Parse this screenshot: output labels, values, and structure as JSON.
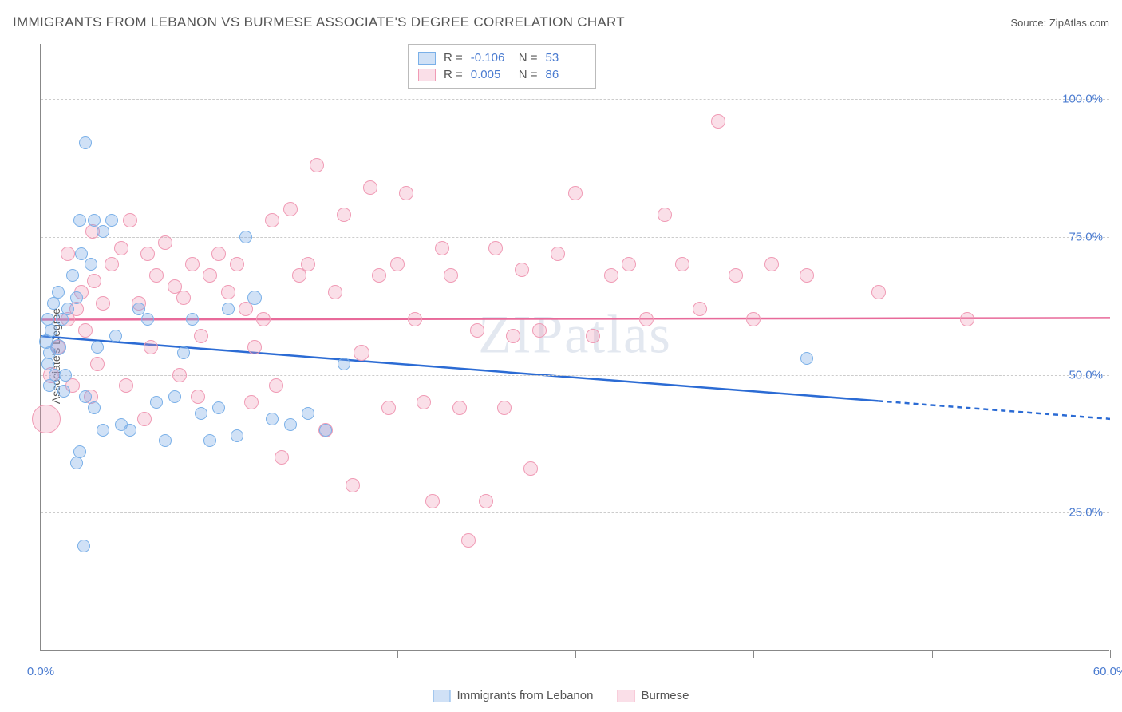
{
  "title": "IMMIGRANTS FROM LEBANON VS BURMESE ASSOCIATE'S DEGREE CORRELATION CHART",
  "source": "Source: ZipAtlas.com",
  "watermark": "ZIPatlas",
  "ylabel": "Associate's Degree",
  "chart": {
    "type": "scatter",
    "background_color": "#ffffff",
    "grid_color": "#cccccc",
    "axis_color": "#888888",
    "xlim": [
      0,
      60
    ],
    "ylim": [
      0,
      110
    ],
    "xticks": [
      0,
      10,
      20,
      30,
      40,
      50,
      60
    ],
    "xtick_labels": {
      "0": "0.0%",
      "60": "60.0%"
    },
    "yticks": [
      25,
      50,
      75,
      100
    ],
    "ytick_labels": {
      "25": "25.0%",
      "50": "50.0%",
      "75": "75.0%",
      "100": "100.0%"
    },
    "label_fontsize": 15,
    "label_color": "#4a7bd0",
    "series_a": {
      "name": "Immigrants from Lebanon",
      "fill": "rgba(120,170,230,0.35)",
      "stroke": "#7ab0e8",
      "trend_color": "#2b6bd4",
      "trend_width": 2.5,
      "R": "-0.106",
      "N": "53",
      "trend": {
        "x1": 0,
        "y1": 57,
        "x2": 60,
        "y2": 42,
        "solid_until_x": 47
      },
      "points": [
        {
          "x": 0.3,
          "y": 56,
          "r": 9
        },
        {
          "x": 0.5,
          "y": 54,
          "r": 8
        },
        {
          "x": 0.4,
          "y": 52,
          "r": 8
        },
        {
          "x": 0.6,
          "y": 58,
          "r": 8
        },
        {
          "x": 0.8,
          "y": 50,
          "r": 8
        },
        {
          "x": 0.5,
          "y": 48,
          "r": 8
        },
        {
          "x": 1.0,
          "y": 55,
          "r": 10
        },
        {
          "x": 1.2,
          "y": 60,
          "r": 8
        },
        {
          "x": 1.5,
          "y": 62,
          "r": 8
        },
        {
          "x": 1.3,
          "y": 47,
          "r": 8
        },
        {
          "x": 2.0,
          "y": 64,
          "r": 8
        },
        {
          "x": 2.2,
          "y": 78,
          "r": 8
        },
        {
          "x": 2.5,
          "y": 92,
          "r": 8
        },
        {
          "x": 2.3,
          "y": 72,
          "r": 8
        },
        {
          "x": 3.0,
          "y": 78,
          "r": 8
        },
        {
          "x": 2.8,
          "y": 70,
          "r": 8
        },
        {
          "x": 3.5,
          "y": 76,
          "r": 8
        },
        {
          "x": 4.0,
          "y": 78,
          "r": 8
        },
        {
          "x": 2.0,
          "y": 34,
          "r": 8
        },
        {
          "x": 2.2,
          "y": 36,
          "r": 8
        },
        {
          "x": 2.5,
          "y": 46,
          "r": 8
        },
        {
          "x": 3.0,
          "y": 44,
          "r": 8
        },
        {
          "x": 3.5,
          "y": 40,
          "r": 8
        },
        {
          "x": 3.2,
          "y": 55,
          "r": 8
        },
        {
          "x": 2.4,
          "y": 19,
          "r": 8
        },
        {
          "x": 4.5,
          "y": 41,
          "r": 8
        },
        {
          "x": 5.0,
          "y": 40,
          "r": 8
        },
        {
          "x": 5.5,
          "y": 62,
          "r": 8
        },
        {
          "x": 6.0,
          "y": 60,
          "r": 8
        },
        {
          "x": 6.5,
          "y": 45,
          "r": 8
        },
        {
          "x": 7.0,
          "y": 38,
          "r": 8
        },
        {
          "x": 7.5,
          "y": 46,
          "r": 8
        },
        {
          "x": 8.0,
          "y": 54,
          "r": 8
        },
        {
          "x": 8.5,
          "y": 60,
          "r": 8
        },
        {
          "x": 9.0,
          "y": 43,
          "r": 8
        },
        {
          "x": 9.5,
          "y": 38,
          "r": 8
        },
        {
          "x": 10.0,
          "y": 44,
          "r": 8
        },
        {
          "x": 10.5,
          "y": 62,
          "r": 8
        },
        {
          "x": 11.0,
          "y": 39,
          "r": 8
        },
        {
          "x": 11.5,
          "y": 75,
          "r": 8
        },
        {
          "x": 12.0,
          "y": 64,
          "r": 9
        },
        {
          "x": 13.0,
          "y": 42,
          "r": 8
        },
        {
          "x": 14.0,
          "y": 41,
          "r": 8
        },
        {
          "x": 15.0,
          "y": 43,
          "r": 8
        },
        {
          "x": 16.0,
          "y": 40,
          "r": 8
        },
        {
          "x": 17.0,
          "y": 52,
          "r": 8
        },
        {
          "x": 1.0,
          "y": 65,
          "r": 8
        },
        {
          "x": 1.8,
          "y": 68,
          "r": 8
        },
        {
          "x": 0.4,
          "y": 60,
          "r": 8
        },
        {
          "x": 0.7,
          "y": 63,
          "r": 8
        },
        {
          "x": 1.4,
          "y": 50,
          "r": 8
        },
        {
          "x": 4.2,
          "y": 57,
          "r": 8
        },
        {
          "x": 43.0,
          "y": 53,
          "r": 8
        }
      ]
    },
    "series_b": {
      "name": "Burmese",
      "fill": "rgba(240,150,180,0.30)",
      "stroke": "#f09bb5",
      "trend_color": "#e86a9a",
      "trend_width": 2.5,
      "R": "0.005",
      "N": "86",
      "trend": {
        "x1": 0,
        "y1": 60,
        "x2": 60,
        "y2": 60.3,
        "solid_until_x": 60
      },
      "points": [
        {
          "x": 0.3,
          "y": 42,
          "r": 18
        },
        {
          "x": 0.6,
          "y": 50,
          "r": 10
        },
        {
          "x": 1.0,
          "y": 55,
          "r": 9
        },
        {
          "x": 1.5,
          "y": 60,
          "r": 9
        },
        {
          "x": 1.8,
          "y": 48,
          "r": 9
        },
        {
          "x": 2.0,
          "y": 62,
          "r": 9
        },
        {
          "x": 2.3,
          "y": 65,
          "r": 9
        },
        {
          "x": 2.5,
          "y": 58,
          "r": 9
        },
        {
          "x": 3.0,
          "y": 67,
          "r": 9
        },
        {
          "x": 3.5,
          "y": 63,
          "r": 9
        },
        {
          "x": 4.0,
          "y": 70,
          "r": 9
        },
        {
          "x": 4.5,
          "y": 73,
          "r": 9
        },
        {
          "x": 5.0,
          "y": 78,
          "r": 9
        },
        {
          "x": 5.5,
          "y": 63,
          "r": 9
        },
        {
          "x": 6.0,
          "y": 72,
          "r": 9
        },
        {
          "x": 6.5,
          "y": 68,
          "r": 9
        },
        {
          "x": 7.0,
          "y": 74,
          "r": 9
        },
        {
          "x": 7.5,
          "y": 66,
          "r": 9
        },
        {
          "x": 8.0,
          "y": 64,
          "r": 9
        },
        {
          "x": 8.5,
          "y": 70,
          "r": 9
        },
        {
          "x": 9.0,
          "y": 57,
          "r": 9
        },
        {
          "x": 9.5,
          "y": 68,
          "r": 9
        },
        {
          "x": 10.0,
          "y": 72,
          "r": 9
        },
        {
          "x": 10.5,
          "y": 65,
          "r": 9
        },
        {
          "x": 11.0,
          "y": 70,
          "r": 9
        },
        {
          "x": 11.5,
          "y": 62,
          "r": 9
        },
        {
          "x": 12.0,
          "y": 55,
          "r": 9
        },
        {
          "x": 12.5,
          "y": 60,
          "r": 9
        },
        {
          "x": 13.0,
          "y": 78,
          "r": 9
        },
        {
          "x": 13.5,
          "y": 35,
          "r": 9
        },
        {
          "x": 14.0,
          "y": 80,
          "r": 9
        },
        {
          "x": 14.5,
          "y": 68,
          "r": 9
        },
        {
          "x": 15.0,
          "y": 70,
          "r": 9
        },
        {
          "x": 15.5,
          "y": 88,
          "r": 9
        },
        {
          "x": 16.0,
          "y": 40,
          "r": 9
        },
        {
          "x": 16.5,
          "y": 65,
          "r": 9
        },
        {
          "x": 17.0,
          "y": 79,
          "r": 9
        },
        {
          "x": 17.5,
          "y": 30,
          "r": 9
        },
        {
          "x": 18.0,
          "y": 54,
          "r": 10
        },
        {
          "x": 18.5,
          "y": 84,
          "r": 9
        },
        {
          "x": 19.0,
          "y": 68,
          "r": 9
        },
        {
          "x": 19.5,
          "y": 44,
          "r": 9
        },
        {
          "x": 20.0,
          "y": 70,
          "r": 9
        },
        {
          "x": 20.5,
          "y": 83,
          "r": 9
        },
        {
          "x": 21.0,
          "y": 60,
          "r": 9
        },
        {
          "x": 21.5,
          "y": 45,
          "r": 9
        },
        {
          "x": 22.0,
          "y": 27,
          "r": 9
        },
        {
          "x": 22.5,
          "y": 73,
          "r": 9
        },
        {
          "x": 23.0,
          "y": 68,
          "r": 9
        },
        {
          "x": 23.5,
          "y": 44,
          "r": 9
        },
        {
          "x": 24.0,
          "y": 20,
          "r": 9
        },
        {
          "x": 24.5,
          "y": 58,
          "r": 9
        },
        {
          "x": 25.0,
          "y": 27,
          "r": 9
        },
        {
          "x": 25.5,
          "y": 73,
          "r": 9
        },
        {
          "x": 26.0,
          "y": 44,
          "r": 9
        },
        {
          "x": 26.5,
          "y": 57,
          "r": 9
        },
        {
          "x": 27.0,
          "y": 69,
          "r": 9
        },
        {
          "x": 27.5,
          "y": 33,
          "r": 9
        },
        {
          "x": 28.0,
          "y": 58,
          "r": 9
        },
        {
          "x": 29.0,
          "y": 72,
          "r": 9
        },
        {
          "x": 30.0,
          "y": 83,
          "r": 9
        },
        {
          "x": 31.0,
          "y": 57,
          "r": 9
        },
        {
          "x": 32.0,
          "y": 68,
          "r": 9
        },
        {
          "x": 33.0,
          "y": 70,
          "r": 9
        },
        {
          "x": 34.0,
          "y": 60,
          "r": 9
        },
        {
          "x": 35.0,
          "y": 79,
          "r": 9
        },
        {
          "x": 36.0,
          "y": 70,
          "r": 9
        },
        {
          "x": 37.0,
          "y": 62,
          "r": 9
        },
        {
          "x": 38.0,
          "y": 96,
          "r": 9
        },
        {
          "x": 39.0,
          "y": 68,
          "r": 9
        },
        {
          "x": 40.0,
          "y": 60,
          "r": 9
        },
        {
          "x": 41.0,
          "y": 70,
          "r": 9
        },
        {
          "x": 43.0,
          "y": 68,
          "r": 9
        },
        {
          "x": 47.0,
          "y": 65,
          "r": 9
        },
        {
          "x": 52.0,
          "y": 60,
          "r": 9
        },
        {
          "x": 3.2,
          "y": 52,
          "r": 9
        },
        {
          "x": 4.8,
          "y": 48,
          "r": 9
        },
        {
          "x": 6.2,
          "y": 55,
          "r": 9
        },
        {
          "x": 7.8,
          "y": 50,
          "r": 9
        },
        {
          "x": 2.8,
          "y": 46,
          "r": 9
        },
        {
          "x": 1.5,
          "y": 72,
          "r": 9
        },
        {
          "x": 2.9,
          "y": 76,
          "r": 9
        },
        {
          "x": 11.8,
          "y": 45,
          "r": 9
        },
        {
          "x": 13.2,
          "y": 48,
          "r": 9
        },
        {
          "x": 5.8,
          "y": 42,
          "r": 9
        },
        {
          "x": 8.8,
          "y": 46,
          "r": 9
        }
      ]
    }
  },
  "stats_legend": {
    "r_label": "R =",
    "n_label": "N ="
  },
  "bottom_legend": {
    "a": "Immigrants from Lebanon",
    "b": "Burmese"
  }
}
